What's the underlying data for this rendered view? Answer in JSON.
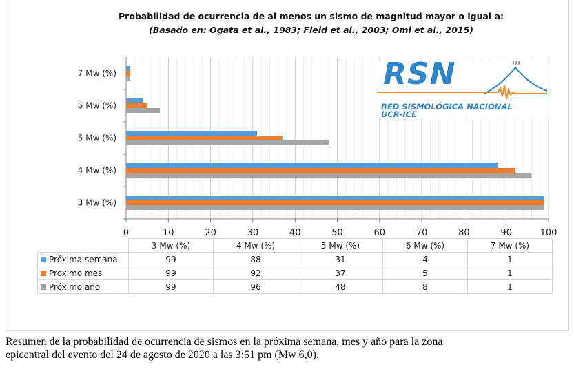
{
  "chart_data": {
    "type": "bar",
    "orientation": "horizontal",
    "title": "Probabilidad de ocurrencia de al menos un sismo de magnitud mayor o igual a:",
    "subtitle": "(Basado en: Ogata et al., 1983; Field et al., 2003; Omi et al., 2015)",
    "categories": [
      "3 Mw (%)",
      "4 Mw (%)",
      "5 Mw (%)",
      "6 Mw (%)",
      "7 Mw (%)"
    ],
    "series": [
      {
        "name": "Próxima semana",
        "color": "#5b9bd5",
        "values": [
          99,
          88,
          31,
          4,
          1
        ]
      },
      {
        "name": "Proximo mes",
        "color": "#ed7d31",
        "values": [
          99,
          92,
          37,
          5,
          1
        ]
      },
      {
        "name": "Próximo año",
        "color": "#a5a5a5",
        "values": [
          99,
          96,
          48,
          8,
          1
        ]
      }
    ],
    "xlim": [
      0,
      100
    ],
    "xticks": [
      "0",
      "10",
      "20",
      "30",
      "40",
      "50",
      "60",
      "70",
      "80",
      "90",
      "100"
    ],
    "grid": true,
    "legend": "data-table-below"
  },
  "logo": {
    "text": "RSN",
    "line1": "RED SISMOLÓGICA NACIONAL",
    "line2": "UCR-ICE"
  },
  "caption": {
    "line1": "Resumen de la probabilidad de ocurrencia de sismos en la próxima semana, mes y año para la zona",
    "line2": "epicentral del evento del 24 de agosto de 2020 a las 3:51 pm (Mw 6,0)."
  }
}
